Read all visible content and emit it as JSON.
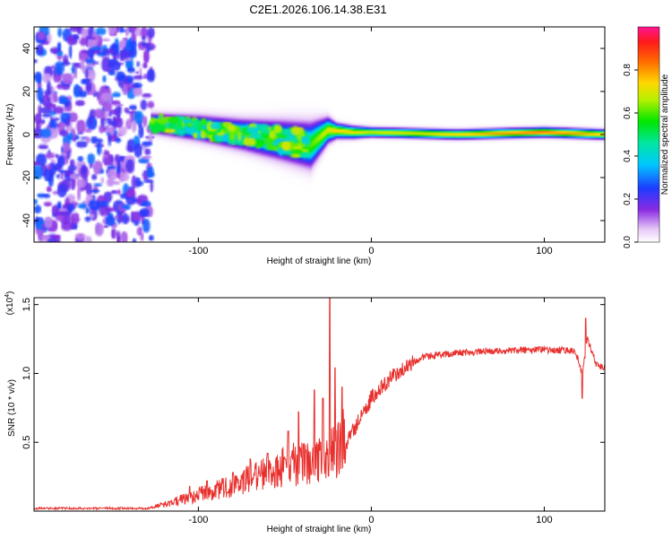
{
  "title": "C2E1.2026.106.14.38.E31",
  "chart_data": [
    {
      "type": "heatmap",
      "title": "C2E1.2026.106.14.38.E31",
      "xlabel": "Height of straight line (km)",
      "ylabel": "Frequency (Hz)",
      "xlim": [
        -195,
        135
      ],
      "ylim": [
        -50,
        50
      ],
      "xticks": [
        -100,
        0,
        100
      ],
      "xtick_labels": [
        "-100",
        "0",
        "100"
      ],
      "yticks": [
        -40,
        -20,
        0,
        20,
        40
      ],
      "ytick_labels": [
        "-40",
        "-20",
        "0",
        "20",
        "40"
      ],
      "colorbar": {
        "label": "Normalized spectral amplitude",
        "range": [
          0,
          1
        ],
        "ticks": [
          0,
          0.2,
          0.4,
          0.6,
          0.8
        ],
        "tick_labels": [
          "0.0",
          "0.2",
          "0.4",
          "0.6",
          "0.8"
        ],
        "colormap": "rainbow"
      },
      "description_points": {
        "noise_region_x": [
          -195,
          -127
        ],
        "noise_amplitude": 0.15,
        "signal_band_center": [
          {
            "x": -125,
            "f": 5
          },
          {
            "x": -100,
            "f": 3
          },
          {
            "x": -75,
            "f": 0
          },
          {
            "x": -50,
            "f": -3
          },
          {
            "x": -35,
            "f": -5
          },
          {
            "x": -25,
            "f": 2
          },
          {
            "x": -10,
            "f": 1
          },
          {
            "x": 0,
            "f": 1
          },
          {
            "x": 50,
            "f": 0
          },
          {
            "x": 100,
            "f": 1
          },
          {
            "x": 135,
            "f": 0
          }
        ],
        "signal_band_halfwidth": [
          {
            "x": -125,
            "w": 4
          },
          {
            "x": -75,
            "w": 6
          },
          {
            "x": -35,
            "w": 9
          },
          {
            "x": -20,
            "w": 3
          },
          {
            "x": 0,
            "w": 2
          },
          {
            "x": 135,
            "w": 2
          }
        ],
        "amplitude_along_band": [
          {
            "x": -125,
            "a": 0.55
          },
          {
            "x": -75,
            "a": 0.6
          },
          {
            "x": -35,
            "a": 0.6
          },
          {
            "x": -20,
            "a": 0.75
          },
          {
            "x": 0,
            "a": 0.7
          },
          {
            "x": 50,
            "a": 0.75
          },
          {
            "x": 97,
            "a": 0.85
          },
          {
            "x": 135,
            "a": 0.75
          }
        ]
      }
    },
    {
      "type": "line",
      "xlabel": "Height of straight line (km)",
      "ylabel": "SNR (10 * v/v)",
      "y_multiplier_label": "(x10",
      "y_multiplier_exp": "4",
      "xlim": [
        -195,
        135
      ],
      "ylim": [
        0,
        1.55
      ],
      "xticks": [
        -100,
        0,
        100
      ],
      "xtick_labels": [
        "-100",
        "0",
        "100"
      ],
      "yticks": [
        0.5,
        1.0,
        1.5
      ],
      "ytick_labels": [
        "0.5",
        "1.0",
        "1.5"
      ],
      "color": "#e8312e",
      "series": [
        {
          "name": "SNR",
          "envelope_x": [
            -195,
            -130,
            -120,
            -100,
            -80,
            -60,
            -50,
            -40,
            -30,
            -22,
            -18,
            -12,
            -5,
            0,
            10,
            20,
            30,
            50,
            70,
            90,
            110,
            118,
            122,
            125,
            130,
            135
          ],
          "envelope_y": [
            0.02,
            0.02,
            0.04,
            0.1,
            0.16,
            0.24,
            0.28,
            0.3,
            0.34,
            0.36,
            0.4,
            0.55,
            0.7,
            0.82,
            0.95,
            1.05,
            1.12,
            1.15,
            1.16,
            1.17,
            1.17,
            1.16,
            1.0,
            1.25,
            1.07,
            1.04
          ],
          "spikes": [
            {
              "x": -105,
              "y": 0.18
            },
            {
              "x": -95,
              "y": 0.22
            },
            {
              "x": -80,
              "y": 0.28
            },
            {
              "x": -70,
              "y": 0.38
            },
            {
              "x": -60,
              "y": 0.42
            },
            {
              "x": -48,
              "y": 0.58
            },
            {
              "x": -42,
              "y": 0.72
            },
            {
              "x": -33,
              "y": 0.88
            },
            {
              "x": -28,
              "y": 0.82
            },
            {
              "x": -24,
              "y": 1.55
            },
            {
              "x": -21,
              "y": 1.04
            },
            {
              "x": -17,
              "y": 0.9
            },
            {
              "x": 122,
              "y": 0.82
            },
            {
              "x": 124,
              "y": 1.4
            }
          ]
        }
      ]
    }
  ]
}
